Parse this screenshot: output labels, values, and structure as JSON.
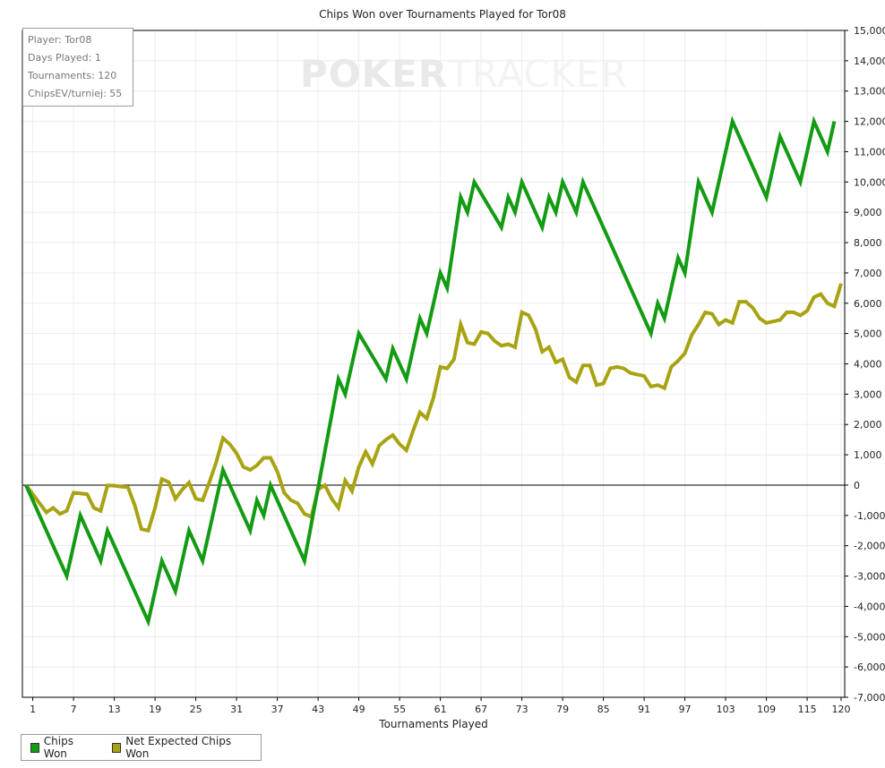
{
  "info": {
    "player": "Player: Tor08",
    "days": "Days Played: 1",
    "tournaments": "Tournaments: 120",
    "ev": "ChipsEV/turniej: 55"
  },
  "watermark": {
    "bold": "POKER",
    "light": "TRACKER"
  },
  "legend": {
    "chips_won": "Chips Won",
    "net_expected": "Net Expected Chips Won"
  },
  "colors": {
    "chips_won": "#139b13",
    "net_expected": "#a8a312",
    "zero_line": "#000000",
    "grid": "#ececec"
  },
  "chart_data": {
    "type": "line",
    "title": "Chips Won over Tournaments Played for Tor08",
    "xlabel": "Tournaments Played",
    "ylabel": "",
    "xlim": [
      0,
      120
    ],
    "ylim": [
      -7000,
      15000
    ],
    "x_ticks": [
      1,
      7,
      13,
      19,
      25,
      31,
      37,
      43,
      49,
      55,
      61,
      67,
      73,
      79,
      85,
      91,
      97,
      103,
      109,
      115,
      120
    ],
    "y_ticks": [
      -7000,
      -6000,
      -5000,
      -4000,
      -3000,
      -2000,
      -1000,
      0,
      1000,
      2000,
      3000,
      4000,
      5000,
      6000,
      7000,
      8000,
      9000,
      10000,
      11000,
      12000,
      13000,
      14000,
      15000
    ],
    "y_tick_labels": [
      "-7,000",
      "-6,000",
      "-5,000",
      "-4,000",
      "-3,000",
      "-2,000",
      "-1,000",
      "0",
      "1,000",
      "2,000",
      "3,000",
      "4,000",
      "5,000",
      "6,000",
      "7,000",
      "8,000",
      "9,000",
      "10,000",
      "11,000",
      "12,000",
      "13,000",
      "14,000",
      "15,000"
    ],
    "grid": true,
    "legend_position": "bottom-left",
    "series": [
      {
        "name": "Chips Won",
        "points": [
          [
            0,
            0
          ],
          [
            6,
            -3000
          ],
          [
            8,
            -1000
          ],
          [
            11,
            -2500
          ],
          [
            12,
            -1500
          ],
          [
            18,
            -4500
          ],
          [
            20,
            -2500
          ],
          [
            22,
            -3500
          ],
          [
            24,
            -1500
          ],
          [
            26,
            -2500
          ],
          [
            29,
            500
          ],
          [
            33,
            -1500
          ],
          [
            34,
            -500
          ],
          [
            35,
            -1000
          ],
          [
            36,
            0
          ],
          [
            41,
            -2500
          ],
          [
            46,
            3500
          ],
          [
            47,
            3000
          ],
          [
            49,
            5000
          ],
          [
            53,
            3500
          ],
          [
            54,
            4500
          ],
          [
            56,
            3500
          ],
          [
            58,
            5500
          ],
          [
            59,
            5000
          ],
          [
            61,
            7000
          ],
          [
            62,
            6500
          ],
          [
            64,
            9500
          ],
          [
            65,
            9000
          ],
          [
            66,
            10000
          ],
          [
            70,
            8500
          ],
          [
            71,
            9500
          ],
          [
            72,
            9000
          ],
          [
            73,
            10000
          ],
          [
            76,
            8500
          ],
          [
            77,
            9500
          ],
          [
            78,
            9000
          ],
          [
            79,
            10000
          ],
          [
            81,
            9000
          ],
          [
            82,
            10000
          ],
          [
            92,
            5000
          ],
          [
            93,
            6000
          ],
          [
            94,
            5500
          ],
          [
            96,
            7500
          ],
          [
            97,
            7000
          ],
          [
            99,
            10000
          ],
          [
            101,
            9000
          ],
          [
            104,
            12000
          ],
          [
            109,
            9500
          ],
          [
            111,
            11500
          ],
          [
            114,
            10000
          ],
          [
            116,
            12000
          ],
          [
            118,
            11000
          ],
          [
            119,
            12000
          ]
        ]
      },
      {
        "name": "Net Expected Chips Won",
        "points": [
          [
            0,
            0
          ],
          [
            3,
            -900
          ],
          [
            4,
            -750
          ],
          [
            5,
            -950
          ],
          [
            6,
            -850
          ],
          [
            7,
            -250
          ],
          [
            9,
            -300
          ],
          [
            10,
            -750
          ],
          [
            11,
            -850
          ],
          [
            12,
            -10
          ],
          [
            13,
            -20
          ],
          [
            14,
            -50
          ],
          [
            15,
            -70
          ],
          [
            16,
            -650
          ],
          [
            17,
            -1450
          ],
          [
            18,
            -1500
          ],
          [
            19,
            -750
          ],
          [
            20,
            200
          ],
          [
            21,
            100
          ],
          [
            22,
            -450
          ],
          [
            23,
            -150
          ],
          [
            24,
            80
          ],
          [
            25,
            -450
          ],
          [
            26,
            -500
          ],
          [
            27,
            100
          ],
          [
            28,
            750
          ],
          [
            29,
            1550
          ],
          [
            30,
            1350
          ],
          [
            31,
            1050
          ],
          [
            32,
            600
          ],
          [
            33,
            500
          ],
          [
            34,
            650
          ],
          [
            35,
            900
          ],
          [
            36,
            900
          ],
          [
            37,
            450
          ],
          [
            38,
            -250
          ],
          [
            39,
            -500
          ],
          [
            40,
            -600
          ],
          [
            41,
            -950
          ],
          [
            42,
            -1050
          ],
          [
            43,
            -150
          ],
          [
            44,
            -5
          ],
          [
            45,
            -450
          ],
          [
            46,
            -750
          ],
          [
            47,
            150
          ],
          [
            48,
            -200
          ],
          [
            49,
            600
          ],
          [
            50,
            1100
          ],
          [
            51,
            700
          ],
          [
            52,
            1300
          ],
          [
            53,
            1500
          ],
          [
            54,
            1650
          ],
          [
            55,
            1350
          ],
          [
            56,
            1150
          ],
          [
            57,
            1800
          ],
          [
            58,
            2400
          ],
          [
            59,
            2200
          ],
          [
            60,
            2900
          ],
          [
            61,
            3900
          ],
          [
            62,
            3850
          ],
          [
            63,
            4150
          ],
          [
            64,
            5300
          ],
          [
            65,
            4700
          ],
          [
            66,
            4650
          ],
          [
            67,
            5050
          ],
          [
            68,
            5000
          ],
          [
            69,
            4750
          ],
          [
            70,
            4600
          ],
          [
            71,
            4650
          ],
          [
            72,
            4550
          ],
          [
            73,
            5700
          ],
          [
            74,
            5600
          ],
          [
            75,
            5150
          ],
          [
            76,
            4400
          ],
          [
            77,
            4550
          ],
          [
            78,
            4050
          ],
          [
            79,
            4150
          ],
          [
            80,
            3550
          ],
          [
            81,
            3400
          ],
          [
            82,
            3950
          ],
          [
            83,
            3950
          ],
          [
            84,
            3300
          ],
          [
            85,
            3350
          ],
          [
            86,
            3850
          ],
          [
            87,
            3900
          ],
          [
            88,
            3850
          ],
          [
            89,
            3700
          ],
          [
            90,
            3650
          ],
          [
            91,
            3600
          ],
          [
            92,
            3250
          ],
          [
            93,
            3300
          ],
          [
            94,
            3200
          ],
          [
            95,
            3900
          ],
          [
            96,
            4100
          ],
          [
            97,
            4350
          ],
          [
            98,
            4950
          ],
          [
            99,
            5300
          ],
          [
            100,
            5700
          ],
          [
            101,
            5650
          ],
          [
            102,
            5300
          ],
          [
            103,
            5450
          ],
          [
            104,
            5350
          ],
          [
            105,
            6050
          ],
          [
            106,
            6050
          ],
          [
            107,
            5850
          ],
          [
            108,
            5500
          ],
          [
            109,
            5350
          ],
          [
            110,
            5400
          ],
          [
            111,
            5450
          ],
          [
            112,
            5700
          ],
          [
            113,
            5700
          ],
          [
            114,
            5600
          ],
          [
            115,
            5750
          ],
          [
            116,
            6200
          ],
          [
            117,
            6300
          ],
          [
            118,
            6000
          ],
          [
            119,
            5900
          ],
          [
            120,
            6650
          ]
        ]
      }
    ]
  }
}
